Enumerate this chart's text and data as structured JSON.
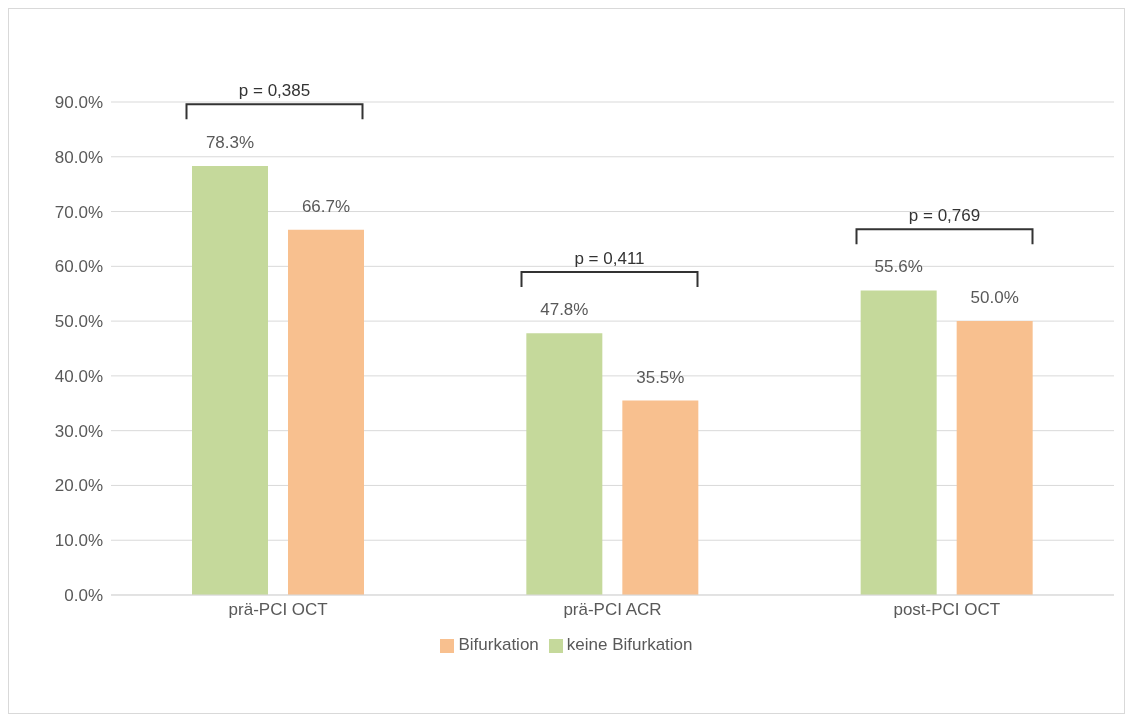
{
  "chart_data": {
    "type": "bar",
    "categories": [
      "prä-PCI OCT",
      "prä-PCI ACR",
      "post-PCI OCT"
    ],
    "series": [
      {
        "name": "keine Bifurkation",
        "color": "#c5d99b",
        "values": [
          78.3,
          47.8,
          55.6
        ],
        "value_labels": [
          "78.3%",
          "47.8%",
          "55.6%"
        ]
      },
      {
        "name": "Bifurkation",
        "color": "#f8c08f",
        "values": [
          66.7,
          35.5,
          50.0
        ],
        "value_labels": [
          "66.7%",
          "35.5%",
          "50.0%"
        ]
      }
    ],
    "ylim": [
      0,
      90
    ],
    "yticks": [
      {
        "value": 0,
        "label": "0.0%"
      },
      {
        "value": 10,
        "label": "10.0%"
      },
      {
        "value": 20,
        "label": "20.0%"
      },
      {
        "value": 30,
        "label": "30.0%"
      },
      {
        "value": 40,
        "label": "40.0%"
      },
      {
        "value": 50,
        "label": "50.0%"
      },
      {
        "value": 60,
        "label": "60.0%"
      },
      {
        "value": 70,
        "label": "70.0%"
      },
      {
        "value": 80,
        "label": "80.0%"
      },
      {
        "value": 90,
        "label": "90.0%"
      }
    ],
    "grid": "y",
    "legend": "bottom",
    "annotations": [
      "p = 0,385",
      "p = 0,411",
      "p = 0,769"
    ]
  }
}
